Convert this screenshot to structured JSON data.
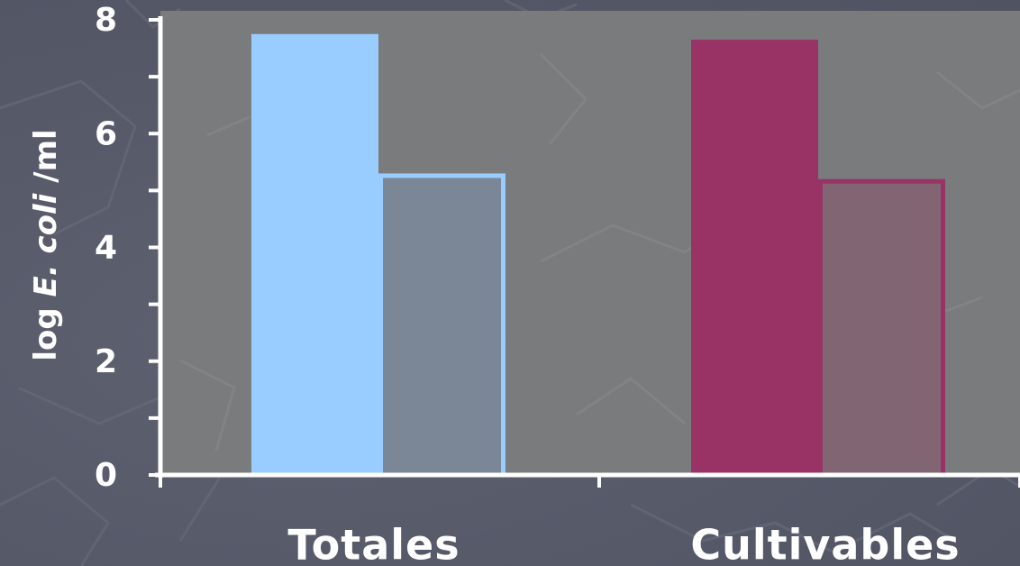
{
  "chart_data": {
    "type": "bar",
    "categories": [
      "Totales",
      "Cultivables"
    ],
    "series": [
      {
        "values": [
          7.75,
          7.65
        ]
      },
      {
        "values": [
          5.3,
          5.2
        ]
      }
    ],
    "ylabel": {
      "prefix": "log ",
      "italic": "E.  coli",
      "suffix": " /ml"
    },
    "ylim": [
      0,
      8
    ],
    "yticks": [
      0,
      2,
      4,
      6,
      8
    ],
    "minor_ticks": true,
    "grid": false,
    "legend": "none",
    "colors": {
      "plot_background": "#7a7b7d",
      "axis": "#ffffff",
      "Totales": {
        "solid": "#99ccff",
        "light_fill": "#7b8796",
        "light_stroke": "#99ccff"
      },
      "Cultivables": {
        "solid": "#993366",
        "light_fill": "#816573",
        "light_stroke": "#993366"
      }
    }
  }
}
